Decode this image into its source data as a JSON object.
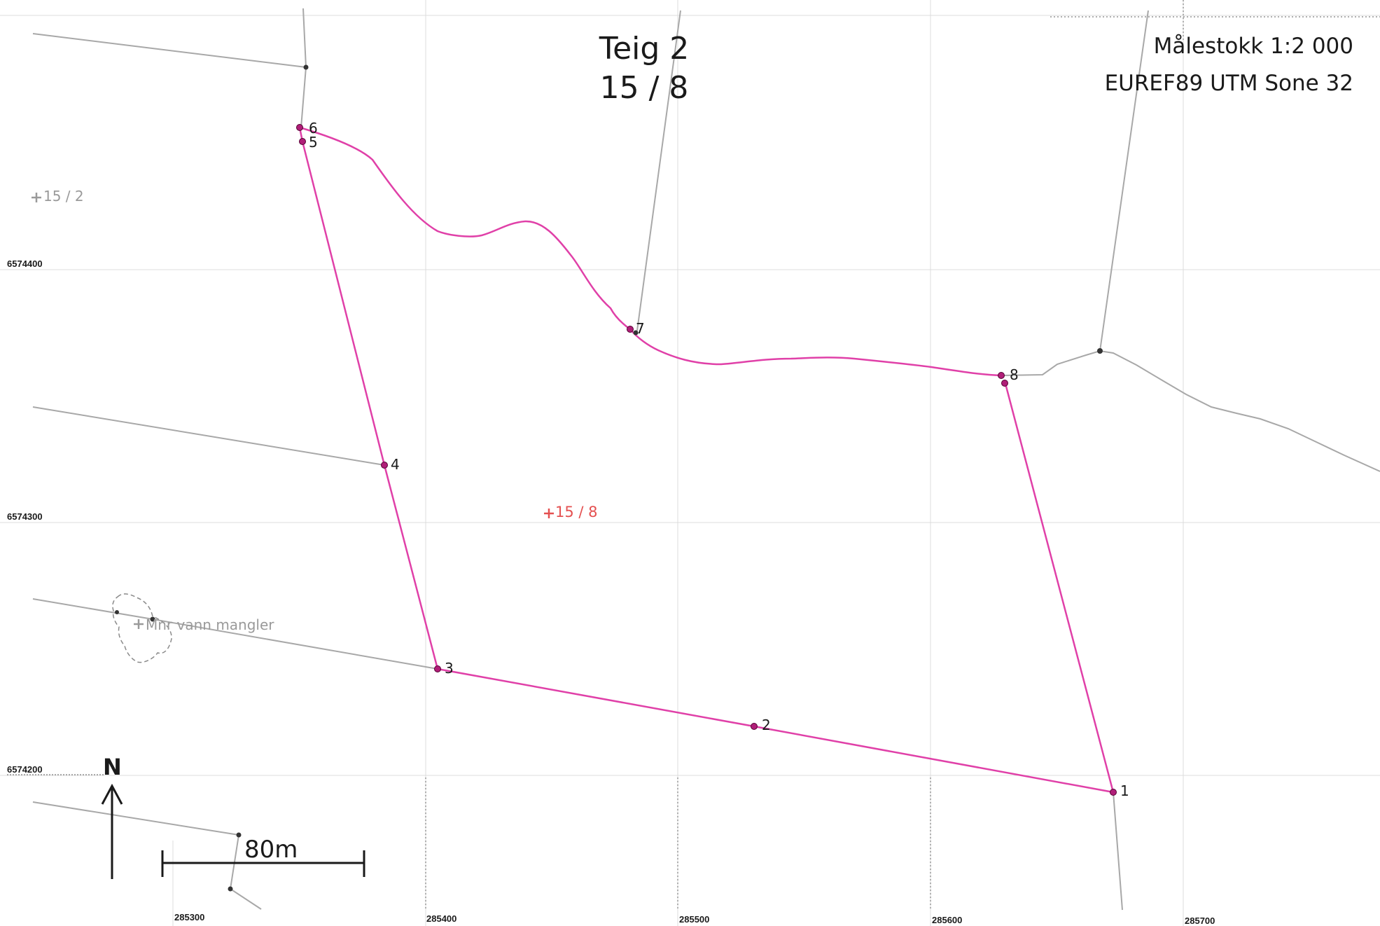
{
  "title": {
    "line1": "Teig 2",
    "line2": "15 / 8"
  },
  "scale_info": {
    "scale": "Målestokk 1:2 000",
    "crs": "EUREF89 UTM Sone 32"
  },
  "grid": {
    "northing_labels": [
      "6574400",
      "6574300",
      "6574200"
    ],
    "easting_labels": [
      "285300",
      "285400",
      "285500",
      "285600",
      "285700"
    ]
  },
  "parcel_labels": {
    "main": "15 / 8",
    "neighbor": "15 / 2",
    "missing": "Mnr vann mangler"
  },
  "points": [
    "1",
    "2",
    "3",
    "4",
    "5",
    "6",
    "7",
    "8"
  ],
  "north_arrow": {
    "label": "N"
  },
  "scale_bar": {
    "label": "80m"
  },
  "colors": {
    "boundary": "#e040a8",
    "neighbor_lines": "#a0a0a0",
    "grid": "#d8d8d8",
    "main_parcel_label": "#e45050",
    "neighbor_label": "#9a9a9a"
  }
}
